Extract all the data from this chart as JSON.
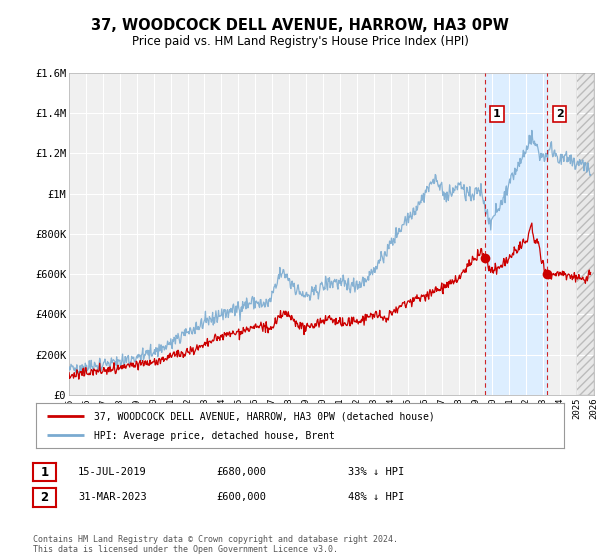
{
  "title": "37, WOODCOCK DELL AVENUE, HARROW, HA3 0PW",
  "subtitle": "Price paid vs. HM Land Registry's House Price Index (HPI)",
  "xlim": [
    1995,
    2026
  ],
  "ylim": [
    0,
    1600000
  ],
  "yticks": [
    0,
    200000,
    400000,
    600000,
    800000,
    1000000,
    1200000,
    1400000,
    1600000
  ],
  "ytick_labels": [
    "£0",
    "£200K",
    "£400K",
    "£600K",
    "£800K",
    "£1M",
    "£1.2M",
    "£1.4M",
    "£1.6M"
  ],
  "xticks": [
    1995,
    1996,
    1997,
    1998,
    1999,
    2000,
    2001,
    2002,
    2003,
    2004,
    2005,
    2006,
    2007,
    2008,
    2009,
    2010,
    2011,
    2012,
    2013,
    2014,
    2015,
    2016,
    2017,
    2018,
    2019,
    2020,
    2021,
    2022,
    2023,
    2024,
    2025,
    2026
  ],
  "plot_bg_color": "#f0f0f0",
  "grid_color": "#ffffff",
  "red_line_color": "#cc0000",
  "blue_line_color": "#7aaad0",
  "marker1_x": 2019.54,
  "marker1_y": 680000,
  "marker2_x": 2023.25,
  "marker2_y": 600000,
  "vline1_x": 2019.54,
  "vline2_x": 2023.25,
  "shade1_start": 2019.54,
  "shade1_end": 2023.25,
  "shade1_color": "#ddeeff",
  "shade2_start": 2025.0,
  "shade2_end": 2026.0,
  "legend_line1": "37, WOODCOCK DELL AVENUE, HARROW, HA3 0PW (detached house)",
  "legend_line2": "HPI: Average price, detached house, Brent",
  "annotation1_date": "15-JUL-2019",
  "annotation1_price": "£680,000",
  "annotation1_hpi": "33% ↓ HPI",
  "annotation2_date": "31-MAR-2023",
  "annotation2_price": "£600,000",
  "annotation2_hpi": "48% ↓ HPI",
  "footer": "Contains HM Land Registry data © Crown copyright and database right 2024.\nThis data is licensed under the Open Government Licence v3.0."
}
